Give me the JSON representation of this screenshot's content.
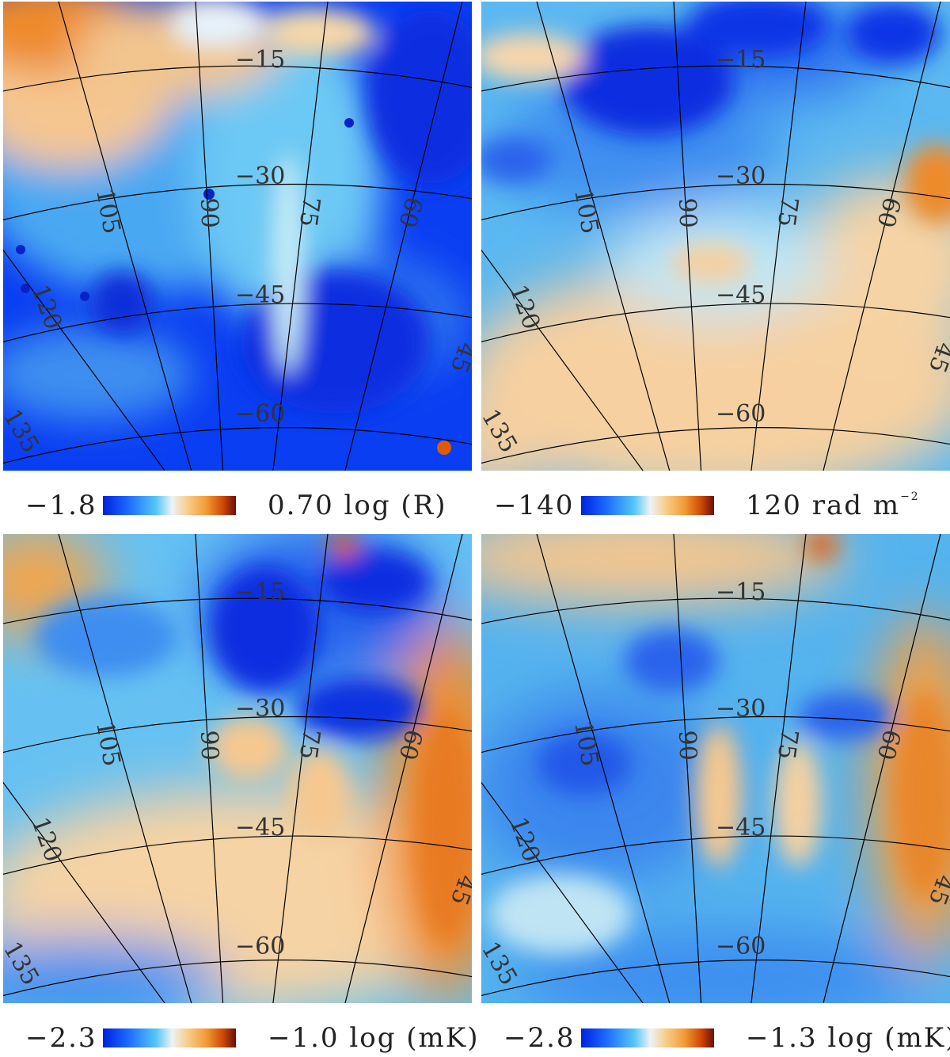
{
  "panels": [
    {
      "id": "halpha",
      "scale": {
        "min_label": "−1.8",
        "max_value": "0.70",
        "unit": "log (R)",
        "unit_superscript": ""
      },
      "grid": {
        "lat_labels": [
          "−15",
          "−30",
          "−45",
          "−60"
        ],
        "lon_labels": [
          "105",
          "90",
          "75",
          "60",
          "120",
          "45",
          "135"
        ]
      },
      "colors": {
        "base": "#0a3ef2"
      }
    },
    {
      "id": "rotation-measure",
      "scale": {
        "min_label": "−140",
        "max_value": "120",
        "unit": "rad m",
        "unit_superscript": "−2"
      },
      "grid": {
        "lat_labels": [
          "−15",
          "−30",
          "−45",
          "−60"
        ],
        "lon_labels": [
          "105",
          "90",
          "75",
          "60",
          "120",
          "45",
          "135"
        ]
      },
      "colors": {
        "base": "#5bb8f0"
      }
    },
    {
      "id": "polarized-1",
      "scale": {
        "min_label": "−2.3",
        "max_value": "−1.0",
        "unit": "log (mK)",
        "unit_superscript": ""
      },
      "grid": {
        "lat_labels": [
          "−15",
          "−30",
          "−45",
          "−60"
        ],
        "lon_labels": [
          "105",
          "90",
          "75",
          "60",
          "120",
          "45",
          "135"
        ]
      },
      "colors": {
        "base": "#66c1f2"
      }
    },
    {
      "id": "polarized-2",
      "scale": {
        "min_label": "−2.8",
        "max_value": "−1.3",
        "unit": "log (mK)",
        "unit_superscript": ""
      },
      "grid": {
        "lat_labels": [
          "−15",
          "−30",
          "−45",
          "−60"
        ],
        "lon_labels": [
          "105",
          "90",
          "75",
          "60",
          "120",
          "45",
          "135"
        ]
      },
      "colors": {
        "base": "#55b3ee"
      }
    }
  ]
}
